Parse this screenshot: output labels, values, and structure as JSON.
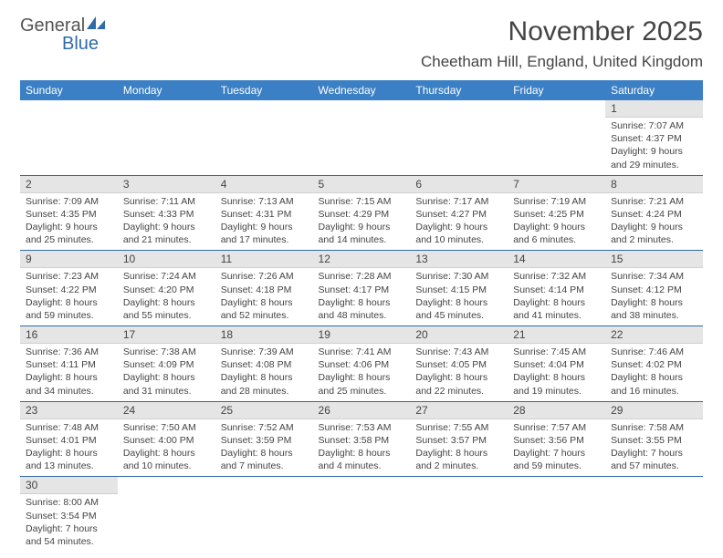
{
  "logo": {
    "text1": "General",
    "text2": "Blue"
  },
  "title": "November 2025",
  "location": "Cheetham Hill, England, United Kingdom",
  "headers": [
    "Sunday",
    "Monday",
    "Tuesday",
    "Wednesday",
    "Thursday",
    "Friday",
    "Saturday"
  ],
  "colors": {
    "header_bg": "#3b7fc4",
    "header_text": "#ffffff",
    "daynum_bg": "#e5e5e5",
    "border": "#2f6aa8",
    "text": "#444444",
    "logo_gray": "#555555",
    "logo_blue": "#2f6aa8"
  },
  "weeks": [
    [
      null,
      null,
      null,
      null,
      null,
      null,
      {
        "n": "1",
        "sr": "Sunrise: 7:07 AM",
        "ss": "Sunset: 4:37 PM",
        "d1": "Daylight: 9 hours",
        "d2": "and 29 minutes."
      }
    ],
    [
      {
        "n": "2",
        "sr": "Sunrise: 7:09 AM",
        "ss": "Sunset: 4:35 PM",
        "d1": "Daylight: 9 hours",
        "d2": "and 25 minutes."
      },
      {
        "n": "3",
        "sr": "Sunrise: 7:11 AM",
        "ss": "Sunset: 4:33 PM",
        "d1": "Daylight: 9 hours",
        "d2": "and 21 minutes."
      },
      {
        "n": "4",
        "sr": "Sunrise: 7:13 AM",
        "ss": "Sunset: 4:31 PM",
        "d1": "Daylight: 9 hours",
        "d2": "and 17 minutes."
      },
      {
        "n": "5",
        "sr": "Sunrise: 7:15 AM",
        "ss": "Sunset: 4:29 PM",
        "d1": "Daylight: 9 hours",
        "d2": "and 14 minutes."
      },
      {
        "n": "6",
        "sr": "Sunrise: 7:17 AM",
        "ss": "Sunset: 4:27 PM",
        "d1": "Daylight: 9 hours",
        "d2": "and 10 minutes."
      },
      {
        "n": "7",
        "sr": "Sunrise: 7:19 AM",
        "ss": "Sunset: 4:25 PM",
        "d1": "Daylight: 9 hours",
        "d2": "and 6 minutes."
      },
      {
        "n": "8",
        "sr": "Sunrise: 7:21 AM",
        "ss": "Sunset: 4:24 PM",
        "d1": "Daylight: 9 hours",
        "d2": "and 2 minutes."
      }
    ],
    [
      {
        "n": "9",
        "sr": "Sunrise: 7:23 AM",
        "ss": "Sunset: 4:22 PM",
        "d1": "Daylight: 8 hours",
        "d2": "and 59 minutes."
      },
      {
        "n": "10",
        "sr": "Sunrise: 7:24 AM",
        "ss": "Sunset: 4:20 PM",
        "d1": "Daylight: 8 hours",
        "d2": "and 55 minutes."
      },
      {
        "n": "11",
        "sr": "Sunrise: 7:26 AM",
        "ss": "Sunset: 4:18 PM",
        "d1": "Daylight: 8 hours",
        "d2": "and 52 minutes."
      },
      {
        "n": "12",
        "sr": "Sunrise: 7:28 AM",
        "ss": "Sunset: 4:17 PM",
        "d1": "Daylight: 8 hours",
        "d2": "and 48 minutes."
      },
      {
        "n": "13",
        "sr": "Sunrise: 7:30 AM",
        "ss": "Sunset: 4:15 PM",
        "d1": "Daylight: 8 hours",
        "d2": "and 45 minutes."
      },
      {
        "n": "14",
        "sr": "Sunrise: 7:32 AM",
        "ss": "Sunset: 4:14 PM",
        "d1": "Daylight: 8 hours",
        "d2": "and 41 minutes."
      },
      {
        "n": "15",
        "sr": "Sunrise: 7:34 AM",
        "ss": "Sunset: 4:12 PM",
        "d1": "Daylight: 8 hours",
        "d2": "and 38 minutes."
      }
    ],
    [
      {
        "n": "16",
        "sr": "Sunrise: 7:36 AM",
        "ss": "Sunset: 4:11 PM",
        "d1": "Daylight: 8 hours",
        "d2": "and 34 minutes."
      },
      {
        "n": "17",
        "sr": "Sunrise: 7:38 AM",
        "ss": "Sunset: 4:09 PM",
        "d1": "Daylight: 8 hours",
        "d2": "and 31 minutes."
      },
      {
        "n": "18",
        "sr": "Sunrise: 7:39 AM",
        "ss": "Sunset: 4:08 PM",
        "d1": "Daylight: 8 hours",
        "d2": "and 28 minutes."
      },
      {
        "n": "19",
        "sr": "Sunrise: 7:41 AM",
        "ss": "Sunset: 4:06 PM",
        "d1": "Daylight: 8 hours",
        "d2": "and 25 minutes."
      },
      {
        "n": "20",
        "sr": "Sunrise: 7:43 AM",
        "ss": "Sunset: 4:05 PM",
        "d1": "Daylight: 8 hours",
        "d2": "and 22 minutes."
      },
      {
        "n": "21",
        "sr": "Sunrise: 7:45 AM",
        "ss": "Sunset: 4:04 PM",
        "d1": "Daylight: 8 hours",
        "d2": "and 19 minutes."
      },
      {
        "n": "22",
        "sr": "Sunrise: 7:46 AM",
        "ss": "Sunset: 4:02 PM",
        "d1": "Daylight: 8 hours",
        "d2": "and 16 minutes."
      }
    ],
    [
      {
        "n": "23",
        "sr": "Sunrise: 7:48 AM",
        "ss": "Sunset: 4:01 PM",
        "d1": "Daylight: 8 hours",
        "d2": "and 13 minutes."
      },
      {
        "n": "24",
        "sr": "Sunrise: 7:50 AM",
        "ss": "Sunset: 4:00 PM",
        "d1": "Daylight: 8 hours",
        "d2": "and 10 minutes."
      },
      {
        "n": "25",
        "sr": "Sunrise: 7:52 AM",
        "ss": "Sunset: 3:59 PM",
        "d1": "Daylight: 8 hours",
        "d2": "and 7 minutes."
      },
      {
        "n": "26",
        "sr": "Sunrise: 7:53 AM",
        "ss": "Sunset: 3:58 PM",
        "d1": "Daylight: 8 hours",
        "d2": "and 4 minutes."
      },
      {
        "n": "27",
        "sr": "Sunrise: 7:55 AM",
        "ss": "Sunset: 3:57 PM",
        "d1": "Daylight: 8 hours",
        "d2": "and 2 minutes."
      },
      {
        "n": "28",
        "sr": "Sunrise: 7:57 AM",
        "ss": "Sunset: 3:56 PM",
        "d1": "Daylight: 7 hours",
        "d2": "and 59 minutes."
      },
      {
        "n": "29",
        "sr": "Sunrise: 7:58 AM",
        "ss": "Sunset: 3:55 PM",
        "d1": "Daylight: 7 hours",
        "d2": "and 57 minutes."
      }
    ],
    [
      {
        "n": "30",
        "sr": "Sunrise: 8:00 AM",
        "ss": "Sunset: 3:54 PM",
        "d1": "Daylight: 7 hours",
        "d2": "and 54 minutes."
      },
      null,
      null,
      null,
      null,
      null,
      null
    ]
  ]
}
